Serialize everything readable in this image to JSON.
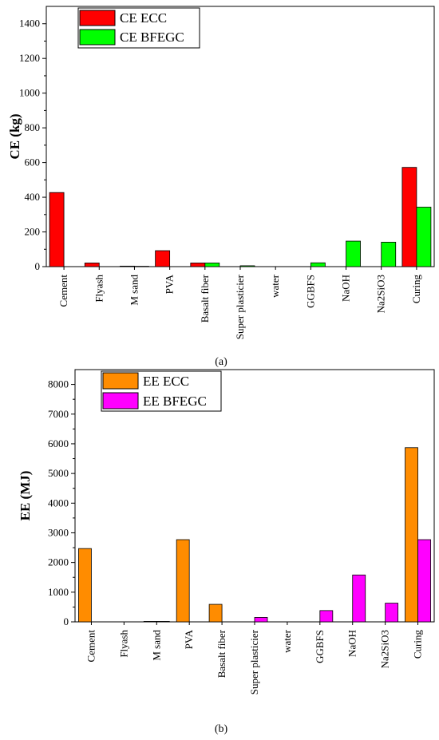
{
  "chart_data": [
    {
      "type": "bar",
      "ylabel": "CE (kg)",
      "ylim": [
        0,
        1500
      ],
      "yticks": [
        0,
        200,
        400,
        600,
        800,
        1000,
        1200,
        1400
      ],
      "categories": [
        "Cement",
        "Flyash",
        "M sand",
        "PVA",
        "Basalt fiber",
        "Super plasticier",
        "water",
        "GGBFS",
        "NaOH",
        "Na2SiO3",
        "Curing"
      ],
      "series": [
        {
          "name": "CE ECC",
          "color": "#ff0000",
          "values": [
            427,
            21,
            3,
            92,
            21,
            0,
            0,
            0,
            0,
            0,
            572
          ]
        },
        {
          "name": "CE BFEGC",
          "color": "#00ff00",
          "values": [
            0,
            0,
            2,
            0,
            21,
            5,
            0,
            22,
            147,
            141,
            343
          ]
        }
      ],
      "legend": "top-left",
      "caption": "(a)"
    },
    {
      "type": "bar",
      "ylabel": "EE (MJ)",
      "ylim": [
        0,
        8500
      ],
      "yticks": [
        0,
        1000,
        2000,
        3000,
        4000,
        5000,
        6000,
        7000,
        8000
      ],
      "categories": [
        "Cement",
        "Flyash",
        "M sand",
        "PVA",
        "Basalt fiber",
        "Super plasticier",
        "water",
        "GGBFS",
        "NaOH",
        "Na2SiO3",
        "Curing"
      ],
      "series": [
        {
          "name": "EE ECC",
          "color": "#ff8c00",
          "values": [
            2470,
            0,
            15,
            2770,
            590,
            0,
            0,
            0,
            0,
            0,
            5870
          ]
        },
        {
          "name": "EE BFEGC",
          "color": "#ff00ff",
          "values": [
            0,
            0,
            15,
            0,
            0,
            150,
            0,
            380,
            1580,
            630,
            2770
          ]
        }
      ],
      "legend": "top-left",
      "caption": "(b)"
    }
  ]
}
